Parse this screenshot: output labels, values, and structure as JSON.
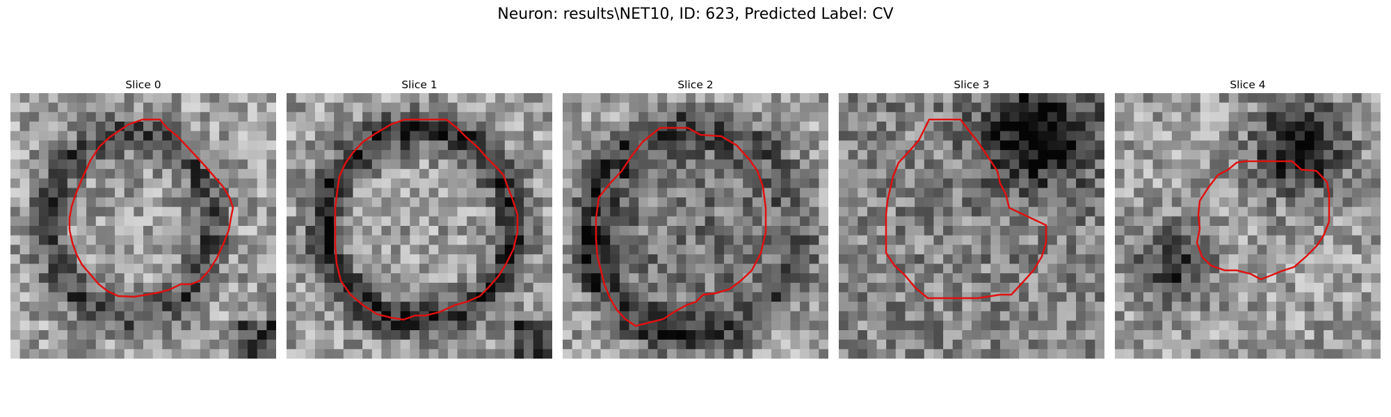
{
  "figure": {
    "title": "Neuron: results\\NET10, ID: 623, Predicted Label: CV"
  },
  "panels": [
    {
      "title": "Slice 0",
      "dark_region": "left-edge",
      "outline_color": "#e01010"
    },
    {
      "title": "Slice 1",
      "dark_region": "left-ring",
      "outline_color": "#e01010"
    },
    {
      "title": "Slice 2",
      "dark_region": "bottom-left-ring",
      "outline_color": "#e01010"
    },
    {
      "title": "Slice 3",
      "dark_region": "top-right",
      "outline_color": "#e01010"
    },
    {
      "title": "Slice 4",
      "dark_region": "top-right-and-left",
      "outline_color": "#e01010"
    }
  ],
  "colors": {
    "outline": "#e01010",
    "background": "#ffffff"
  },
  "colormap": "grayscale"
}
